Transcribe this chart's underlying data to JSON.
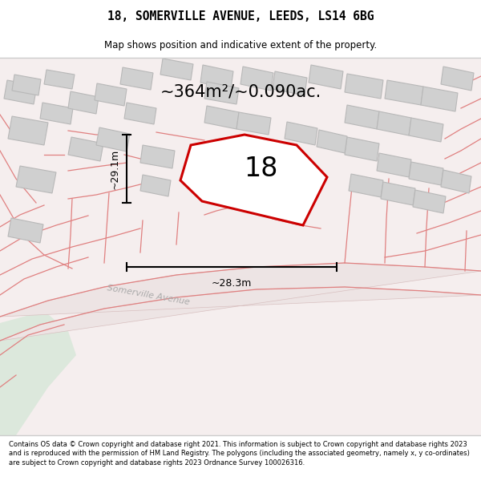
{
  "title_line1": "18, SOMERVILLE AVENUE, LEEDS, LS14 6BG",
  "title_line2": "Map shows position and indicative extent of the property.",
  "area_text": "~364m²/~0.090ac.",
  "number_label": "18",
  "dim_vertical": "~29.1m",
  "dim_horizontal": "~28.3m",
  "street_label": "Somerville Avenue",
  "footer_text": "Contains OS data © Crown copyright and database right 2021. This information is subject to Crown copyright and database rights 2023 and is reproduced with the permission of HM Land Registry. The polygons (including the associated geometry, namely x, y co-ordinates) are subject to Crown copyright and database rights 2023 Ordnance Survey 100026316.",
  "figsize": [
    6.0,
    6.25
  ],
  "dpi": 100,
  "map_bg": "#f5eded",
  "plot_color": "#cc0000",
  "building_fill": "#d0d0d0",
  "building_edge": "#b8b8b8",
  "pink_line_color": "#e08080",
  "green_fill": "#dce8dc"
}
